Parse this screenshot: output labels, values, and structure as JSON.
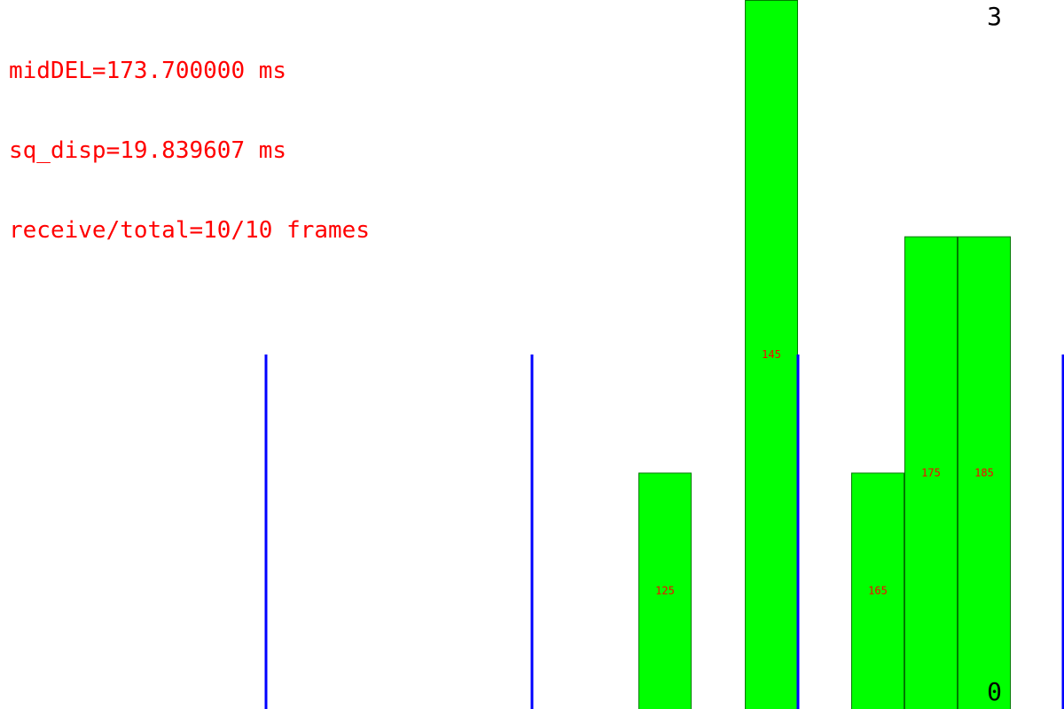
{
  "stats": {
    "line1": "midDEL=173.700000 ms",
    "line2": "sq_disp=19.839607 ms",
    "line3": "receive/total=10/10 frames"
  },
  "axis": {
    "ymax_label": "3",
    "ymin_label": "0"
  },
  "colors": {
    "bar_fill": "#00ff00",
    "bar_stroke": "#007a00",
    "bar_label": "#ff0000",
    "marker_line": "#0000ff",
    "text": "#ff0000"
  },
  "chart_data": {
    "type": "bar",
    "bin_width_ms": 10,
    "xlim": [
      0,
      200
    ],
    "ylim": [
      0,
      3
    ],
    "bins": [
      {
        "label": "125",
        "center": 125,
        "count": 1
      },
      {
        "label": "145",
        "center": 145,
        "count": 3
      },
      {
        "label": "165",
        "center": 165,
        "count": 1
      },
      {
        "label": "175",
        "center": 175,
        "count": 2
      },
      {
        "label": "185",
        "center": 185,
        "count": 2
      }
    ],
    "marker_lines_ms": [
      50,
      100,
      150,
      200
    ],
    "marker_height_fraction": 0.5
  }
}
